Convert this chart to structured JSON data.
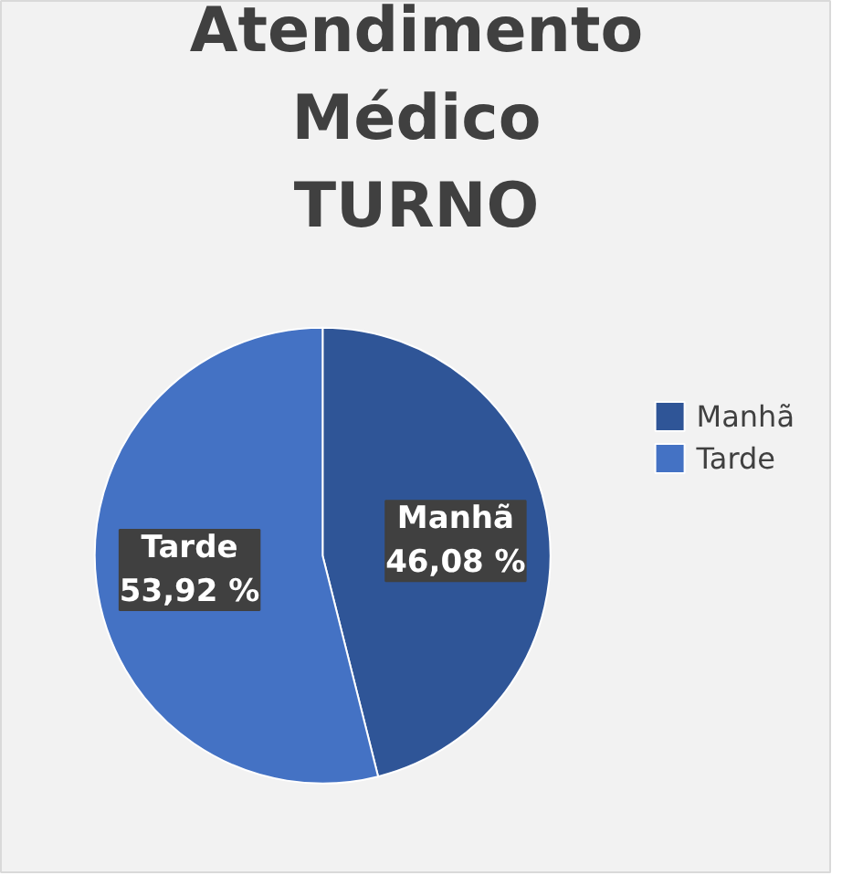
{
  "chart_data": {
    "type": "pie",
    "title": "Atendimento Médico TURNO",
    "categories": [
      "Manhã",
      "Tarde"
    ],
    "values": [
      46.08,
      53.92
    ],
    "value_labels": [
      "46,08 %",
      "53,92 %"
    ],
    "colors": [
      "#2f5597",
      "#4472c4"
    ],
    "legend": "right"
  }
}
